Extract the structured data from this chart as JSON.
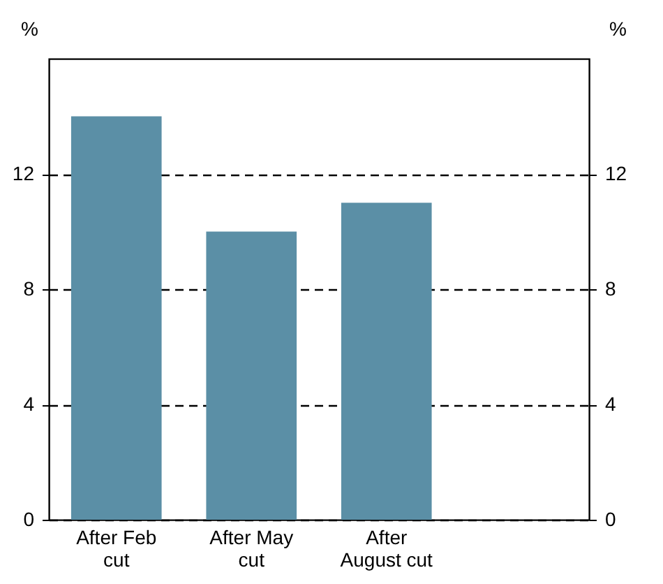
{
  "chart_data": {
    "type": "bar",
    "ylabel": "%",
    "y2label": "%",
    "categories": [
      "After Feb cut",
      "After May cut",
      "After August cut"
    ],
    "values": [
      14,
      10,
      11
    ],
    "color": "#5b8fa6",
    "ylim": [
      0,
      16
    ],
    "yticks": [
      0,
      4,
      8,
      12
    ],
    "y2lim": [
      0,
      16
    ],
    "y2ticks": [
      0,
      4,
      8,
      12
    ],
    "grid": "y",
    "line_style": "dashed"
  }
}
